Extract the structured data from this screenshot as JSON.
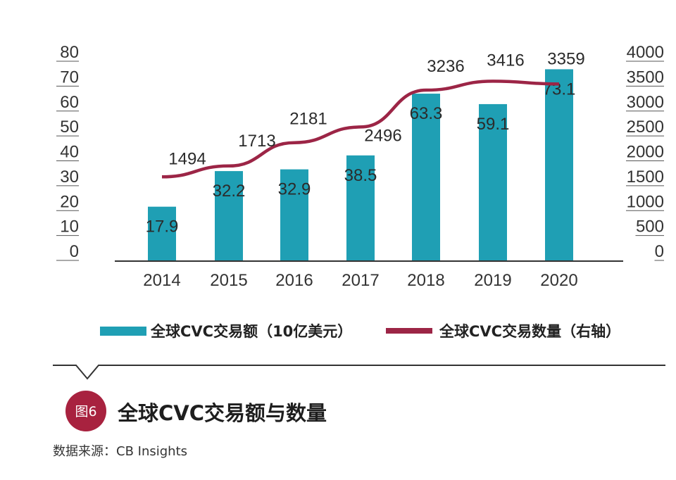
{
  "chart_data": {
    "type": "bar+line",
    "categories": [
      "2014",
      "2015",
      "2016",
      "2017",
      "2018",
      "2019",
      "2020"
    ],
    "series": [
      {
        "name": "全球CVC交易额（10亿美元）",
        "type": "bar",
        "axis": "left",
        "color": "#1f9fb4",
        "values": [
          17.9,
          32.2,
          32.9,
          38.5,
          63.3,
          59.1,
          73.1
        ],
        "labels": [
          "17.9",
          "32.2",
          "32.9",
          "38.5",
          "63.3",
          "59.1",
          "73.1"
        ]
      },
      {
        "name": "全球CVC交易数量（右轴）",
        "type": "line",
        "axis": "right",
        "color": "#9c2546",
        "values": [
          1494,
          1713,
          2181,
          2496,
          3236,
          3416,
          3359
        ],
        "labels": [
          "1494",
          "1713",
          "2181",
          "2496",
          "3236",
          "3416",
          "3359"
        ]
      }
    ],
    "y_left": {
      "ylim": [
        0,
        80
      ],
      "ticks": [
        "80",
        "70",
        "60",
        "50",
        "40",
        "30",
        "20",
        "10",
        "0"
      ]
    },
    "y_right": {
      "ylim": [
        0,
        4000
      ],
      "ticks": [
        "4000",
        "3500",
        "3000",
        "2500",
        "2000",
        "1500",
        "1000",
        "500",
        "0"
      ]
    },
    "legend": {
      "position": "bottom"
    },
    "grid": false
  },
  "figure": {
    "badge": "图6",
    "title": "全球CVC交易额与数量",
    "source": "数据来源：CB Insights",
    "badge_color": "#a8223f",
    "divider_color": "#333333"
  }
}
